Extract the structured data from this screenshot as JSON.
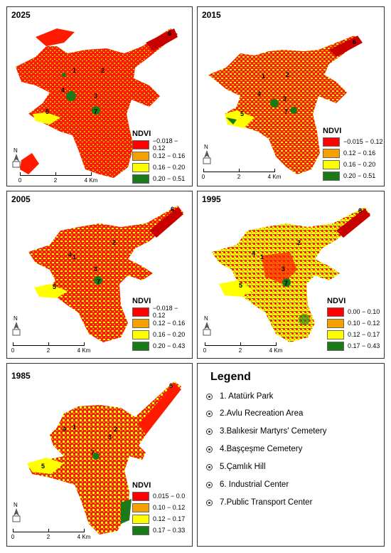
{
  "colors": {
    "c1": "#ff0000",
    "c2": "#f5a100",
    "c3": "#ffff00",
    "c4": "#1a7a1a"
  },
  "panels": [
    {
      "year": "2025",
      "ndvi_title": "NDVI",
      "classes": [
        "−0.018 − 0.12",
        "0.12 − 0.16",
        "0.16 − 0.20",
        "0.20 − 0.51"
      ],
      "scale": {
        "l0": "0",
        "l1": "2",
        "l2": "4 Km"
      }
    },
    {
      "year": "2015",
      "ndvi_title": "NDVI",
      "classes": [
        "−0.015 − 0.12",
        "0.12 − 0.16",
        "0.16 − 0.20",
        "0.20 − 0.51"
      ],
      "scale": {
        "l0": "0",
        "l1": "2",
        "l2": "4 Km"
      }
    },
    {
      "year": "2005",
      "ndvi_title": "NDVI",
      "classes": [
        "−0.018 − 0.12",
        "0.12 − 0.16",
        "0.16 − 0.20",
        "0.20 − 0.43"
      ],
      "scale": {
        "l0": "0",
        "l1": "2",
        "l2": "4 Km"
      }
    },
    {
      "year": "1995",
      "ndvi_title": "NDVI",
      "classes": [
        "0.00 − 0.10",
        "0.10 − 0.12",
        "0.12 − 0.17",
        "0.17 − 0.43"
      ],
      "scale": {
        "l0": "0",
        "l1": "2",
        "l2": "4 Km"
      }
    },
    {
      "year": "1985",
      "ndvi_title": "NDVI",
      "classes": [
        "0.015 − 0.0",
        "0.10 − 0.12",
        "0.12 − 0.17",
        "0.17 − 0.33"
      ],
      "scale": {
        "l0": "0",
        "l1": "2",
        "l2": "4 Km"
      }
    }
  ],
  "legend": {
    "title": "Legend",
    "items": [
      "1. Atatürk Park",
      "2.Avlu Recreation Area",
      "3.Balıkesir Martyrs' Cemetery",
      "4.Başçeşme Cemetery",
      "5.Çamlık  Hill",
      "6. Industrial Center",
      "7.Public Transport Center"
    ]
  },
  "north_label": "N",
  "point_labels": [
    "1",
    "2",
    "3",
    "4",
    "5",
    "6",
    "7"
  ]
}
